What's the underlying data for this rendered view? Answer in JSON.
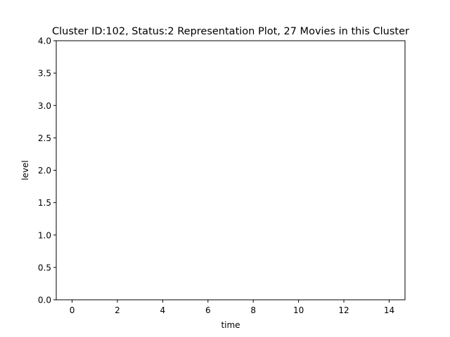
{
  "chart_data": {
    "type": "line",
    "title": "Cluster ID:102, Status:2 Representation Plot, 27 Movies in this Cluster",
    "xlabel": "time",
    "ylabel": "level",
    "xlim": [
      -0.7,
      14.7
    ],
    "ylim": [
      0.0,
      4.0
    ],
    "xticks": [
      0,
      2,
      4,
      6,
      8,
      10,
      12,
      14
    ],
    "yticks": [
      0.0,
      0.5,
      1.0,
      1.5,
      2.0,
      2.5,
      3.0,
      3.5,
      4.0
    ],
    "ytick_labels": [
      "0.0",
      "0.5",
      "1.0",
      "1.5",
      "2.0",
      "2.5",
      "3.0",
      "3.5",
      "4.0"
    ],
    "series": [],
    "grid": false
  }
}
